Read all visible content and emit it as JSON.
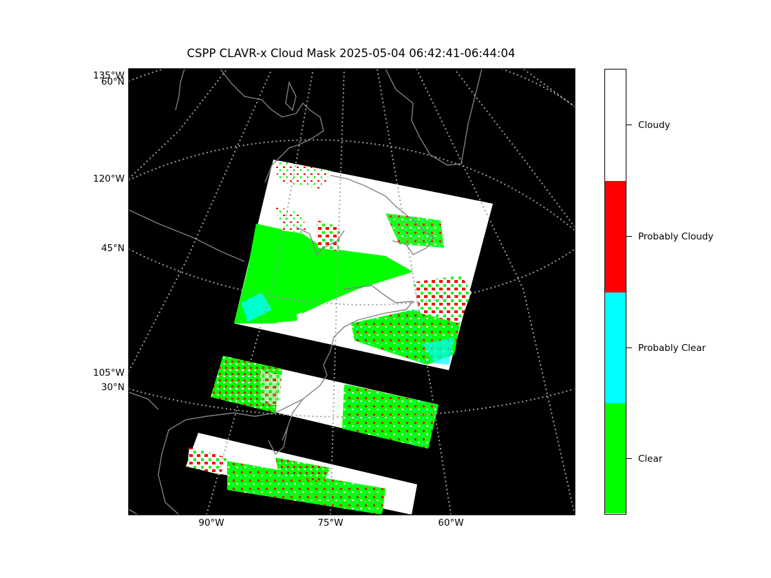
{
  "title": "CSPP CLAVR-x Cloud Mask 2025-05-04 06:42:41-06:44:04",
  "colors": {
    "background": "#000000",
    "cloudy": "#ffffff",
    "probably_cloudy": "#ff0000",
    "probably_clear": "#00ffff",
    "clear": "#00ff00",
    "coastline": "#808080",
    "gridline": "#a0a0a0"
  },
  "map": {
    "left_labels": [
      "135°W",
      "60°N",
      "120°W",
      "45°N",
      "105°W",
      "30°N"
    ],
    "bottom_labels": [
      "90°W",
      "75°W",
      "60°W"
    ]
  },
  "legend": {
    "classes": [
      {
        "name": "Cloudy",
        "color": "#ffffff"
      },
      {
        "name": "Probably Cloudy",
        "color": "#ff0000"
      },
      {
        "name": "Probably Clear",
        "color": "#00ffff"
      },
      {
        "name": "Clear",
        "color": "#00ff00"
      }
    ]
  }
}
